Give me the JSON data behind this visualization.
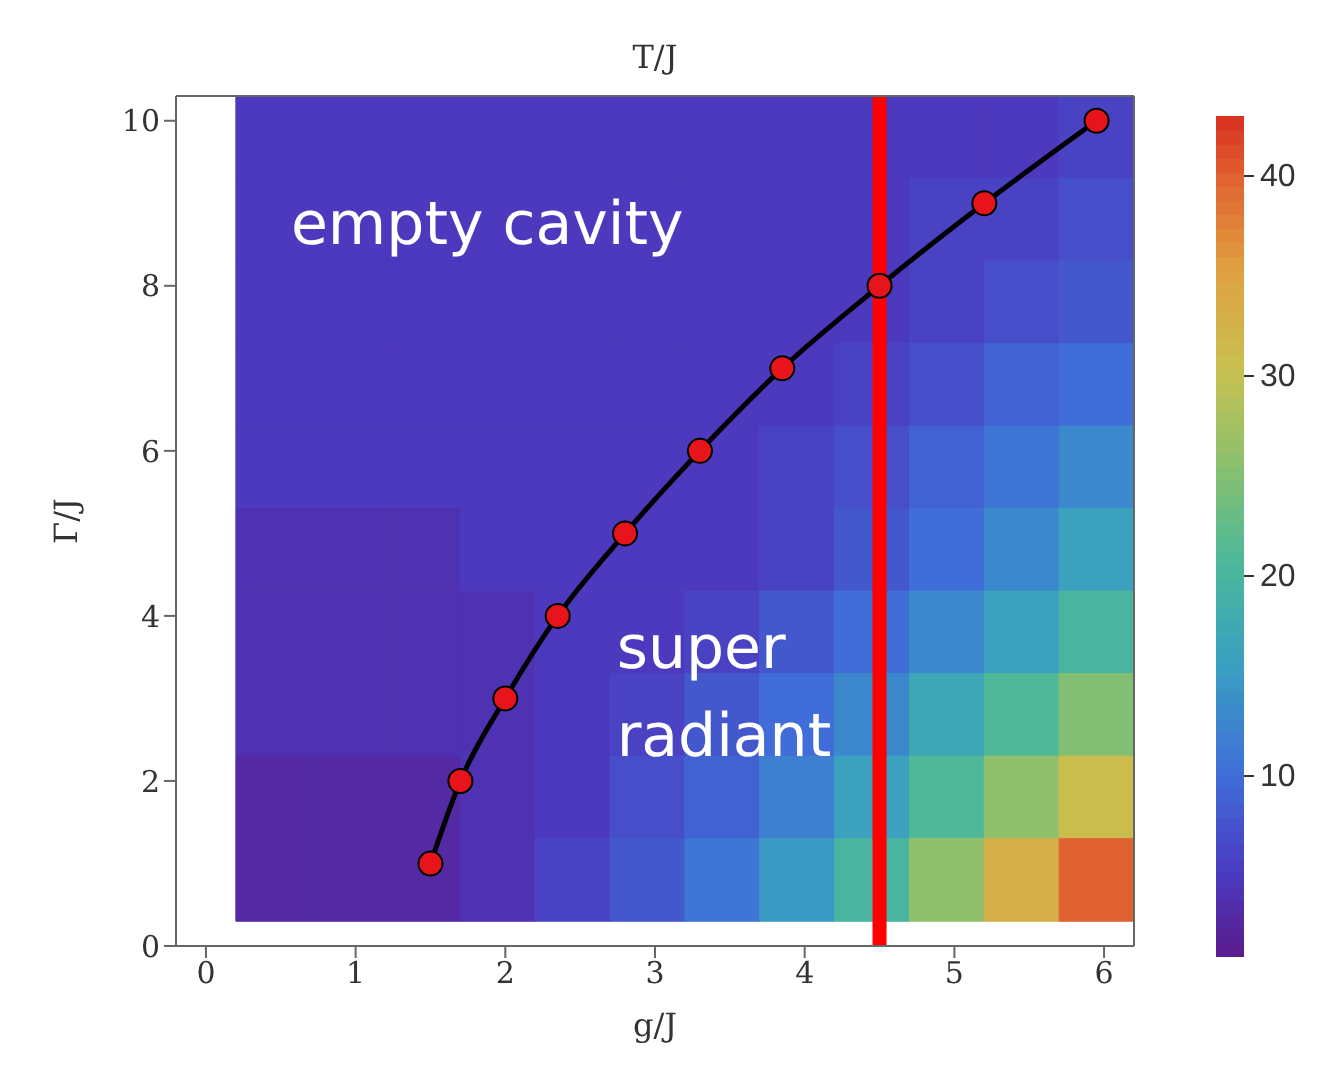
{
  "chart_data": {
    "type": "heatmap",
    "title": "T/J",
    "xlabel": "g/J",
    "ylabel": "Γ/J",
    "x": [
      0.45,
      0.95,
      1.45,
      1.95,
      2.45,
      2.95,
      3.45,
      3.95,
      4.45,
      4.95,
      5.45,
      5.95
    ],
    "y": [
      9.8,
      8.8,
      7.8,
      6.8,
      5.8,
      4.8,
      3.8,
      2.8,
      1.8,
      0.8
    ],
    "cells": [
      [
        5,
        5,
        5,
        5,
        5,
        5,
        5,
        5,
        5,
        5,
        5,
        6
      ],
      [
        5,
        5,
        5,
        5,
        5,
        5,
        5,
        5,
        5,
        6,
        6,
        7
      ],
      [
        5,
        5,
        5,
        5,
        5,
        5,
        5,
        5,
        5,
        6,
        7,
        8
      ],
      [
        5,
        5,
        5,
        5,
        5,
        5,
        5,
        5,
        6,
        7,
        9,
        10
      ],
      [
        5,
        5,
        5,
        5,
        5,
        5,
        5,
        6,
        7,
        9,
        11,
        13
      ],
      [
        4,
        4,
        4,
        5,
        5,
        5,
        5,
        6,
        8,
        10,
        13,
        16
      ],
      [
        4,
        4,
        4,
        4,
        5,
        5,
        6,
        8,
        10,
        13,
        16,
        20
      ],
      [
        4,
        4,
        4,
        4,
        5,
        6,
        8,
        10,
        13,
        17,
        21,
        25
      ],
      [
        3,
        3,
        3,
        4,
        5,
        7,
        9,
        12,
        16,
        21,
        26,
        31
      ],
      [
        3,
        3,
        3,
        4,
        6,
        8,
        11,
        15,
        20,
        26,
        33,
        40
      ]
    ],
    "clim": [
      1,
      43
    ],
    "cticks": [
      10,
      20,
      30,
      40
    ],
    "xlim": [
      -0.2,
      6.2
    ],
    "ylim": [
      0,
      10.3
    ],
    "xticks": [
      0,
      1,
      2,
      3,
      4,
      5,
      6
    ],
    "yticks": [
      0,
      2,
      4,
      6,
      8,
      10
    ],
    "series": [
      {
        "type": "line",
        "color": "#000000",
        "marker": "circle",
        "x": [
          1.5,
          1.7,
          2,
          2.35,
          2.8,
          3.3,
          3.85,
          4.5,
          5.2,
          5.95
        ],
        "values": [
          1,
          2,
          3,
          4,
          5,
          6,
          7,
          8,
          9,
          10
        ]
      }
    ],
    "ref_lines": [
      {
        "axis": "x",
        "value": 4.5,
        "color": "#ff0000"
      }
    ],
    "annotations": [
      "empty cavity",
      "super radiant"
    ]
  }
}
